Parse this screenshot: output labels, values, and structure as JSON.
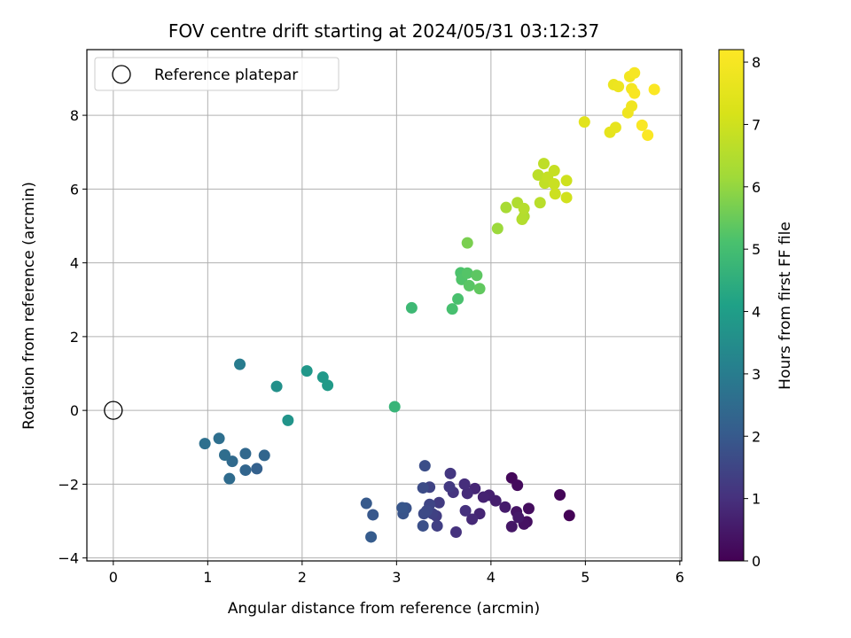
{
  "chart_data": {
    "type": "scatter",
    "title": "FOV centre drift starting at 2024/05/31 03:12:37",
    "xlabel": "Angular distance from reference (arcmin)",
    "ylabel": "Rotation from reference (arcmin)",
    "xlim": [
      -0.28,
      6.02
    ],
    "ylim": [
      -4.08,
      9.78
    ],
    "xticks": [
      0,
      1,
      2,
      3,
      4,
      5,
      6
    ],
    "yticks": [
      -4,
      -2,
      0,
      2,
      4,
      6,
      8
    ],
    "grid": true,
    "legend": {
      "placement": "top-left",
      "entries": [
        "Reference platepar"
      ]
    },
    "reference_point": {
      "x": 0,
      "y": 0
    },
    "colorbar": {
      "label": "Hours from first FF file",
      "range": [
        0,
        8.2
      ],
      "ticks": [
        0,
        1,
        2,
        3,
        4,
        5,
        6,
        7,
        8
      ],
      "colormap": "viridis"
    },
    "points": [
      {
        "x": 4.83,
        "y": -2.85,
        "t": 0.05
      },
      {
        "x": 4.73,
        "y": -2.29,
        "t": 0.1
      },
      {
        "x": 4.22,
        "y": -1.83,
        "t": 0.15
      },
      {
        "x": 4.28,
        "y": -2.03,
        "t": 0.2
      },
      {
        "x": 4.4,
        "y": -2.66,
        "t": 0.25
      },
      {
        "x": 4.38,
        "y": -3.02,
        "t": 0.3
      },
      {
        "x": 4.35,
        "y": -3.08,
        "t": 0.35
      },
      {
        "x": 4.27,
        "y": -2.75,
        "t": 0.4
      },
      {
        "x": 4.22,
        "y": -3.15,
        "t": 0.45
      },
      {
        "x": 4.29,
        "y": -2.9,
        "t": 0.5
      },
      {
        "x": 4.15,
        "y": -2.62,
        "t": 0.55
      },
      {
        "x": 4.05,
        "y": -2.45,
        "t": 0.6
      },
      {
        "x": 3.98,
        "y": -2.3,
        "t": 0.65
      },
      {
        "x": 3.92,
        "y": -2.35,
        "t": 0.7
      },
      {
        "x": 3.88,
        "y": -2.8,
        "t": 0.75
      },
      {
        "x": 3.83,
        "y": -2.12,
        "t": 0.8
      },
      {
        "x": 3.8,
        "y": -2.95,
        "t": 0.85
      },
      {
        "x": 3.75,
        "y": -2.25,
        "t": 0.9
      },
      {
        "x": 3.72,
        "y": -2.0,
        "t": 0.95
      },
      {
        "x": 3.73,
        "y": -2.72,
        "t": 1.0
      },
      {
        "x": 3.63,
        "y": -3.3,
        "t": 1.05
      },
      {
        "x": 3.6,
        "y": -2.22,
        "t": 1.1
      },
      {
        "x": 3.57,
        "y": -1.71,
        "t": 1.15
      },
      {
        "x": 3.56,
        "y": -2.07,
        "t": 1.2
      },
      {
        "x": 3.45,
        "y": -2.5,
        "t": 1.25
      },
      {
        "x": 3.42,
        "y": -2.86,
        "t": 1.3
      },
      {
        "x": 3.43,
        "y": -3.13,
        "t": 1.35
      },
      {
        "x": 3.38,
        "y": -2.8,
        "t": 1.4
      },
      {
        "x": 3.35,
        "y": -2.08,
        "t": 1.45
      },
      {
        "x": 3.35,
        "y": -2.55,
        "t": 1.5
      },
      {
        "x": 3.32,
        "y": -2.72,
        "t": 1.55
      },
      {
        "x": 3.29,
        "y": -2.8,
        "t": 1.6
      },
      {
        "x": 3.28,
        "y": -2.1,
        "t": 1.65
      },
      {
        "x": 3.3,
        "y": -1.5,
        "t": 1.7
      },
      {
        "x": 3.28,
        "y": -3.13,
        "t": 1.75
      },
      {
        "x": 3.1,
        "y": -2.65,
        "t": 1.8
      },
      {
        "x": 3.07,
        "y": -2.8,
        "t": 1.85
      },
      {
        "x": 3.06,
        "y": -2.64,
        "t": 1.9
      },
      {
        "x": 2.75,
        "y": -2.83,
        "t": 1.95
      },
      {
        "x": 2.68,
        "y": -2.52,
        "t": 2.0
      },
      {
        "x": 2.73,
        "y": -3.43,
        "t": 2.05
      },
      {
        "x": 1.52,
        "y": -1.58,
        "t": 2.2
      },
      {
        "x": 1.4,
        "y": -1.62,
        "t": 2.3
      },
      {
        "x": 1.6,
        "y": -1.22,
        "t": 2.35
      },
      {
        "x": 1.4,
        "y": -1.17,
        "t": 2.4
      },
      {
        "x": 1.26,
        "y": -1.38,
        "t": 2.45
      },
      {
        "x": 1.23,
        "y": -1.85,
        "t": 2.5
      },
      {
        "x": 1.18,
        "y": -1.21,
        "t": 2.55
      },
      {
        "x": 1.12,
        "y": -0.76,
        "t": 2.6
      },
      {
        "x": 0.97,
        "y": -0.9,
        "t": 2.65
      },
      {
        "x": 1.34,
        "y": 1.25,
        "t": 3.0
      },
      {
        "x": 1.73,
        "y": 0.65,
        "t": 3.6
      },
      {
        "x": 1.85,
        "y": -0.27,
        "t": 3.7
      },
      {
        "x": 2.05,
        "y": 1.07,
        "t": 3.8
      },
      {
        "x": 2.22,
        "y": 0.9,
        "t": 3.85
      },
      {
        "x": 2.27,
        "y": 0.68,
        "t": 3.9
      },
      {
        "x": 2.98,
        "y": 0.1,
        "t": 4.7
      },
      {
        "x": 3.16,
        "y": 2.78,
        "t": 4.85
      },
      {
        "x": 3.59,
        "y": 2.75,
        "t": 5.05
      },
      {
        "x": 3.65,
        "y": 3.02,
        "t": 5.1
      },
      {
        "x": 3.68,
        "y": 3.73,
        "t": 5.15
      },
      {
        "x": 3.69,
        "y": 3.55,
        "t": 5.2
      },
      {
        "x": 3.75,
        "y": 3.72,
        "t": 5.25
      },
      {
        "x": 3.77,
        "y": 3.38,
        "t": 5.3
      },
      {
        "x": 3.85,
        "y": 3.66,
        "t": 5.35
      },
      {
        "x": 3.88,
        "y": 3.3,
        "t": 5.4
      },
      {
        "x": 3.75,
        "y": 4.54,
        "t": 5.7
      },
      {
        "x": 4.07,
        "y": 4.93,
        "t": 6.1
      },
      {
        "x": 4.16,
        "y": 5.5,
        "t": 6.3
      },
      {
        "x": 4.35,
        "y": 5.26,
        "t": 6.4
      },
      {
        "x": 4.28,
        "y": 5.63,
        "t": 6.45
      },
      {
        "x": 4.33,
        "y": 5.18,
        "t": 6.5
      },
      {
        "x": 4.35,
        "y": 5.47,
        "t": 6.55
      },
      {
        "x": 4.52,
        "y": 5.63,
        "t": 6.6
      },
      {
        "x": 4.5,
        "y": 6.38,
        "t": 6.65
      },
      {
        "x": 4.56,
        "y": 6.69,
        "t": 6.7
      },
      {
        "x": 4.57,
        "y": 6.16,
        "t": 6.75
      },
      {
        "x": 4.6,
        "y": 6.32,
        "t": 6.8
      },
      {
        "x": 4.67,
        "y": 6.5,
        "t": 6.85
      },
      {
        "x": 4.67,
        "y": 6.14,
        "t": 6.9
      },
      {
        "x": 4.68,
        "y": 5.87,
        "t": 6.95
      },
      {
        "x": 4.8,
        "y": 6.23,
        "t": 7.0
      },
      {
        "x": 4.8,
        "y": 5.77,
        "t": 7.05
      },
      {
        "x": 4.99,
        "y": 7.82,
        "t": 7.45
      },
      {
        "x": 5.26,
        "y": 7.54,
        "t": 7.55
      },
      {
        "x": 5.32,
        "y": 7.67,
        "t": 7.6
      },
      {
        "x": 5.3,
        "y": 8.83,
        "t": 7.7
      },
      {
        "x": 5.35,
        "y": 8.78,
        "t": 7.75
      },
      {
        "x": 5.45,
        "y": 8.07,
        "t": 7.8
      },
      {
        "x": 5.49,
        "y": 8.25,
        "t": 7.85
      },
      {
        "x": 5.47,
        "y": 9.05,
        "t": 7.9
      },
      {
        "x": 5.49,
        "y": 8.72,
        "t": 7.95
      },
      {
        "x": 5.52,
        "y": 9.15,
        "t": 8.0
      },
      {
        "x": 5.52,
        "y": 8.6,
        "t": 8.05
      },
      {
        "x": 5.6,
        "y": 7.73,
        "t": 8.1
      },
      {
        "x": 5.66,
        "y": 7.46,
        "t": 8.12
      },
      {
        "x": 5.73,
        "y": 8.7,
        "t": 8.15
      }
    ]
  }
}
